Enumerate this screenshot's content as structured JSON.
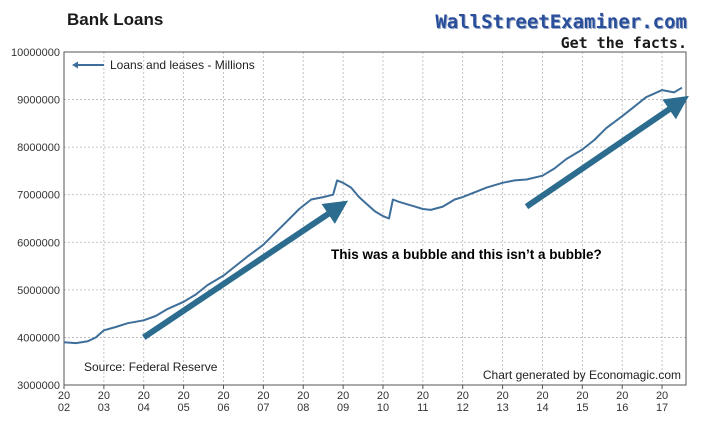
{
  "brand": {
    "name": "WallStreetExaminer.com",
    "tagline": "Get the facts."
  },
  "chart_data": {
    "type": "line",
    "title": "Bank Loans",
    "xlabel": "",
    "ylabel": "",
    "ylim": [
      3000000,
      10000000
    ],
    "yticks": [
      "3000000",
      "4000000",
      "5000000",
      "6000000",
      "7000000",
      "8000000",
      "9000000",
      "10000000"
    ],
    "xlim": [
      2002,
      2017.6
    ],
    "xticks": [
      {
        "top": "20",
        "bottom": "02",
        "year": 2002
      },
      {
        "top": "20",
        "bottom": "03",
        "year": 2003
      },
      {
        "top": "20",
        "bottom": "04",
        "year": 2004
      },
      {
        "top": "20",
        "bottom": "05",
        "year": 2005
      },
      {
        "top": "20",
        "bottom": "06",
        "year": 2006
      },
      {
        "top": "20",
        "bottom": "07",
        "year": 2007
      },
      {
        "top": "20",
        "bottom": "08",
        "year": 2008
      },
      {
        "top": "20",
        "bottom": "09",
        "year": 2009
      },
      {
        "top": "20",
        "bottom": "10",
        "year": 2010
      },
      {
        "top": "20",
        "bottom": "11",
        "year": 2011
      },
      {
        "top": "20",
        "bottom": "12",
        "year": 2012
      },
      {
        "top": "20",
        "bottom": "13",
        "year": 2013
      },
      {
        "top": "20",
        "bottom": "14",
        "year": 2014
      },
      {
        "top": "20",
        "bottom": "15",
        "year": 2015
      },
      {
        "top": "20",
        "bottom": "16",
        "year": 2016
      },
      {
        "top": "20",
        "bottom": "17",
        "year": 2017
      }
    ],
    "grid": true,
    "legend_placement": "top-left",
    "series": [
      {
        "name": "Loans and leases -  Millions",
        "color": "#3e6f9a",
        "x": [
          2002.0,
          2002.3,
          2002.6,
          2002.8,
          2003.0,
          2003.3,
          2003.6,
          2004.0,
          2004.3,
          2004.6,
          2005.0,
          2005.3,
          2005.6,
          2006.0,
          2006.3,
          2006.6,
          2007.0,
          2007.3,
          2007.6,
          2007.9,
          2008.2,
          2008.5,
          2008.75,
          2008.85,
          2009.0,
          2009.2,
          2009.4,
          2009.6,
          2009.8,
          2010.0,
          2010.15,
          2010.25,
          2010.4,
          2010.6,
          2010.8,
          2011.0,
          2011.2,
          2011.5,
          2011.8,
          2012.0,
          2012.3,
          2012.6,
          2013.0,
          2013.3,
          2013.6,
          2014.0,
          2014.3,
          2014.6,
          2015.0,
          2015.3,
          2015.6,
          2016.0,
          2016.3,
          2016.6,
          2017.0,
          2017.3,
          2017.5
        ],
        "y": [
          3900000,
          3880000,
          3920000,
          4000000,
          4150000,
          4220000,
          4300000,
          4360000,
          4450000,
          4600000,
          4750000,
          4900000,
          5100000,
          5300000,
          5500000,
          5700000,
          5950000,
          6200000,
          6450000,
          6700000,
          6900000,
          6950000,
          7000000,
          7300000,
          7250000,
          7150000,
          6950000,
          6800000,
          6650000,
          6550000,
          6500000,
          6900000,
          6850000,
          6800000,
          6750000,
          6700000,
          6680000,
          6750000,
          6900000,
          6950000,
          7050000,
          7150000,
          7250000,
          7300000,
          7320000,
          7400000,
          7550000,
          7750000,
          7950000,
          8150000,
          8400000,
          8650000,
          8850000,
          9050000,
          9200000,
          9150000,
          9250000
        ]
      }
    ],
    "annotations": [
      {
        "text": "This was a bubble and this isn’t a bubble?"
      },
      {
        "text": "Source: Federal Reserve"
      },
      {
        "text": "Chart generated by Economagic.com"
      }
    ],
    "arrows": [
      {
        "from": [
          2004.0,
          4000000
        ],
        "to": [
          2008.9,
          6750000
        ],
        "color": "#2c6c8f"
      },
      {
        "from": [
          2013.6,
          6750000
        ],
        "to": [
          2017.45,
          8950000
        ],
        "color": "#2c6c8f"
      }
    ]
  }
}
